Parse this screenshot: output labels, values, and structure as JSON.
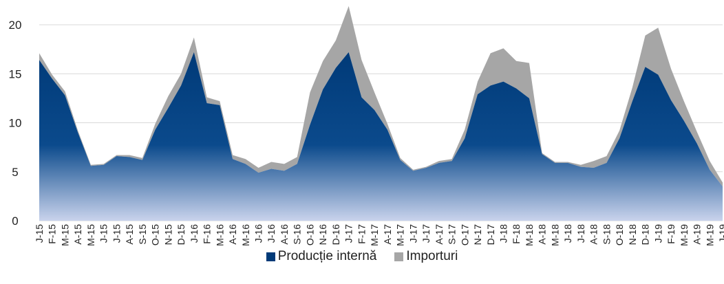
{
  "colors": {
    "production": "#003A78",
    "imports": "#A6A6A6",
    "grid": "#D9D9D9"
  },
  "chart_data": {
    "type": "area",
    "stacked": true,
    "categories": [
      "J-15",
      "F-15",
      "M-15",
      "A-15",
      "M-15",
      "J-15",
      "J-15",
      "A-15",
      "S-15",
      "O-15",
      "N-15",
      "D-15",
      "J-16",
      "F-16",
      "M-16",
      "A-16",
      "M-16",
      "J-16",
      "J-16",
      "A-16",
      "S-16",
      "O-16",
      "N-16",
      "D-16",
      "J-17",
      "F-17",
      "M-17",
      "A-17",
      "M-17",
      "J-17",
      "J-17",
      "A-17",
      "S-17",
      "O-17",
      "N-17",
      "D-17",
      "J-18",
      "F-18",
      "M-18",
      "A-18",
      "M-18",
      "J-18",
      "J-18",
      "A-18",
      "S-18",
      "O-18",
      "N-18",
      "D-18",
      "J-19",
      "F-19",
      "M-19",
      "A-19",
      "M-19",
      "J-19"
    ],
    "series": [
      {
        "name": "Producție internă",
        "values": [
          16.4,
          14.5,
          12.8,
          9.0,
          5.6,
          5.7,
          6.6,
          6.5,
          6.2,
          9.3,
          11.5,
          13.8,
          17.2,
          12.0,
          11.8,
          6.3,
          5.8,
          4.9,
          5.3,
          5.1,
          5.8,
          9.8,
          13.4,
          15.6,
          17.2,
          12.6,
          11.3,
          9.3,
          6.2,
          5.1,
          5.4,
          5.9,
          6.1,
          8.4,
          12.9,
          13.8,
          14.2,
          13.5,
          12.5,
          6.8,
          5.9,
          5.9,
          5.5,
          5.4,
          5.9,
          8.4,
          12.2,
          15.7,
          14.9,
          12.3,
          10.2,
          7.9,
          5.2,
          3.5
        ]
      },
      {
        "name": "Importuri",
        "values": [
          0.7,
          0.4,
          0.4,
          0.2,
          0.1,
          0.1,
          0.1,
          0.2,
          0.2,
          0.6,
          1.2,
          1.2,
          1.5,
          0.6,
          0.4,
          0.4,
          0.5,
          0.5,
          0.7,
          0.7,
          0.7,
          3.3,
          2.9,
          2.8,
          4.7,
          3.8,
          1.8,
          0.6,
          0.2,
          0.1,
          0.1,
          0.2,
          0.2,
          0.9,
          1.3,
          3.3,
          3.4,
          2.8,
          3.6,
          0.1,
          0.1,
          0.1,
          0.2,
          0.7,
          0.7,
          0.8,
          1.4,
          3.2,
          4.8,
          3.2,
          2.0,
          1.2,
          0.9,
          0.4
        ]
      }
    ],
    "yticks": [
      0,
      5,
      10,
      15,
      20
    ],
    "ylim": [
      0,
      22
    ],
    "grid": true,
    "legend": "bottom-center"
  }
}
